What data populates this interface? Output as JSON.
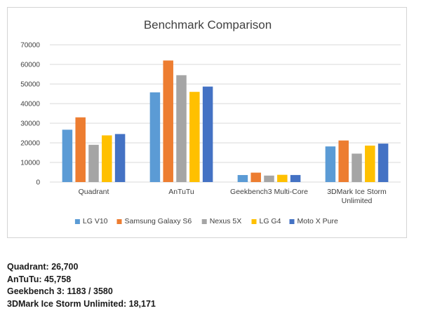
{
  "chart_data": {
    "type": "bar",
    "title": "Benchmark Comparison",
    "categories": [
      [
        "Quadrant"
      ],
      [
        "AnTuTu"
      ],
      [
        "Geekbench3 Multi-Core"
      ],
      [
        "3DMark Ice Storm",
        "Unlimited"
      ]
    ],
    "series": [
      {
        "name": "LG V10",
        "color": "#5b9bd5",
        "values": [
          26700,
          45758,
          3580,
          18171
        ]
      },
      {
        "name": "Samsung Galaxy S6",
        "color": "#ed7d31",
        "values": [
          33000,
          62000,
          4800,
          21200
        ]
      },
      {
        "name": "Nexus 5X",
        "color": "#a5a5a5",
        "values": [
          19000,
          54500,
          3300,
          14500
        ]
      },
      {
        "name": "LG G4",
        "color": "#ffc000",
        "values": [
          23800,
          46000,
          3700,
          18600
        ]
      },
      {
        "name": "Moto X Pure",
        "color": "#4472c4",
        "values": [
          24500,
          48700,
          3600,
          19600
        ]
      }
    ],
    "ylim": [
      0,
      70000
    ],
    "yticks": [
      0,
      10000,
      20000,
      30000,
      40000,
      50000,
      60000,
      70000
    ],
    "grid": true,
    "legend_position": "bottom"
  },
  "notes": [
    "Quadrant: 26,700",
    "AnTuTu: 45,758",
    "Geekbench 3: 1183 / 3580",
    "3DMark Ice Storm Unlimited: 18,171"
  ]
}
